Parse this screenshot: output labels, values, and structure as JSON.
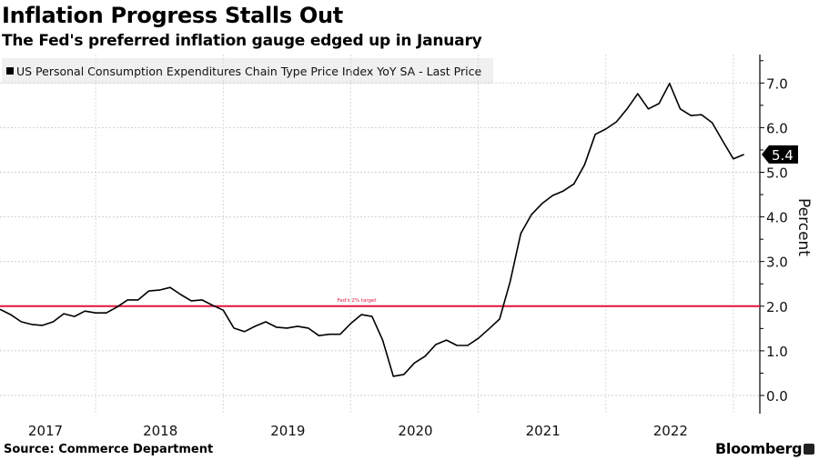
{
  "header": {
    "title": "Inflation Progress Stalls Out",
    "subtitle": "The Fed's preferred inflation gauge edged up in January"
  },
  "footer": {
    "source": "Source: Commerce Department",
    "brand": "Bloomberg",
    "brand_icon": "bloomberg-chart-icon"
  },
  "chart_data": {
    "type": "line",
    "title": "Inflation Progress Stalls Out",
    "subtitle": "The Fed's preferred inflation gauge edged up in January",
    "xlabel": "",
    "ylabel": "Percent",
    "ylim": [
      -0.1,
      7.6
    ],
    "yticks": [
      "0.0",
      "1.0",
      "2.0",
      "3.0",
      "4.0",
      "5.0",
      "6.0",
      "7.0"
    ],
    "ytick_values": [
      0,
      1,
      2,
      3,
      4,
      5,
      6,
      7
    ],
    "xticks": [
      "2017",
      "2018",
      "2019",
      "2020",
      "2021",
      "2022"
    ],
    "x_start": "2017-03",
    "x_end": "2023-01",
    "grid": true,
    "legend": {
      "position": "top-left",
      "entries": [
        "US Personal Consumption Expenditures Chain Type Price Index YoY SA - Last Price"
      ]
    },
    "series": [
      {
        "name": "US Personal Consumption Expenditures Chain Type Price Index YoY SA - Last Price",
        "color": "#000000",
        "values": [
          1.93,
          1.81,
          1.65,
          1.59,
          1.57,
          1.65,
          1.83,
          1.77,
          1.89,
          1.85,
          1.85,
          1.98,
          2.14,
          2.14,
          2.34,
          2.36,
          2.42,
          2.26,
          2.12,
          2.14,
          2.02,
          1.91,
          1.51,
          1.43,
          1.55,
          1.65,
          1.53,
          1.51,
          1.55,
          1.51,
          1.34,
          1.37,
          1.37,
          1.61,
          1.81,
          1.77,
          1.24,
          0.43,
          0.47,
          0.73,
          0.88,
          1.14,
          1.24,
          1.12,
          1.12,
          1.28,
          1.49,
          1.71,
          2.55,
          3.63,
          4.05,
          4.3,
          4.48,
          4.58,
          4.74,
          5.17,
          5.85,
          5.97,
          6.13,
          6.42,
          6.76,
          6.42,
          6.54,
          6.99,
          6.42,
          6.27,
          6.29,
          6.11,
          5.7,
          5.3,
          5.4
        ]
      }
    ],
    "reference_line": {
      "value": 2.0,
      "label": "Fed's 2% target",
      "color": "#e0143c"
    },
    "last_value_label": "5.4"
  }
}
